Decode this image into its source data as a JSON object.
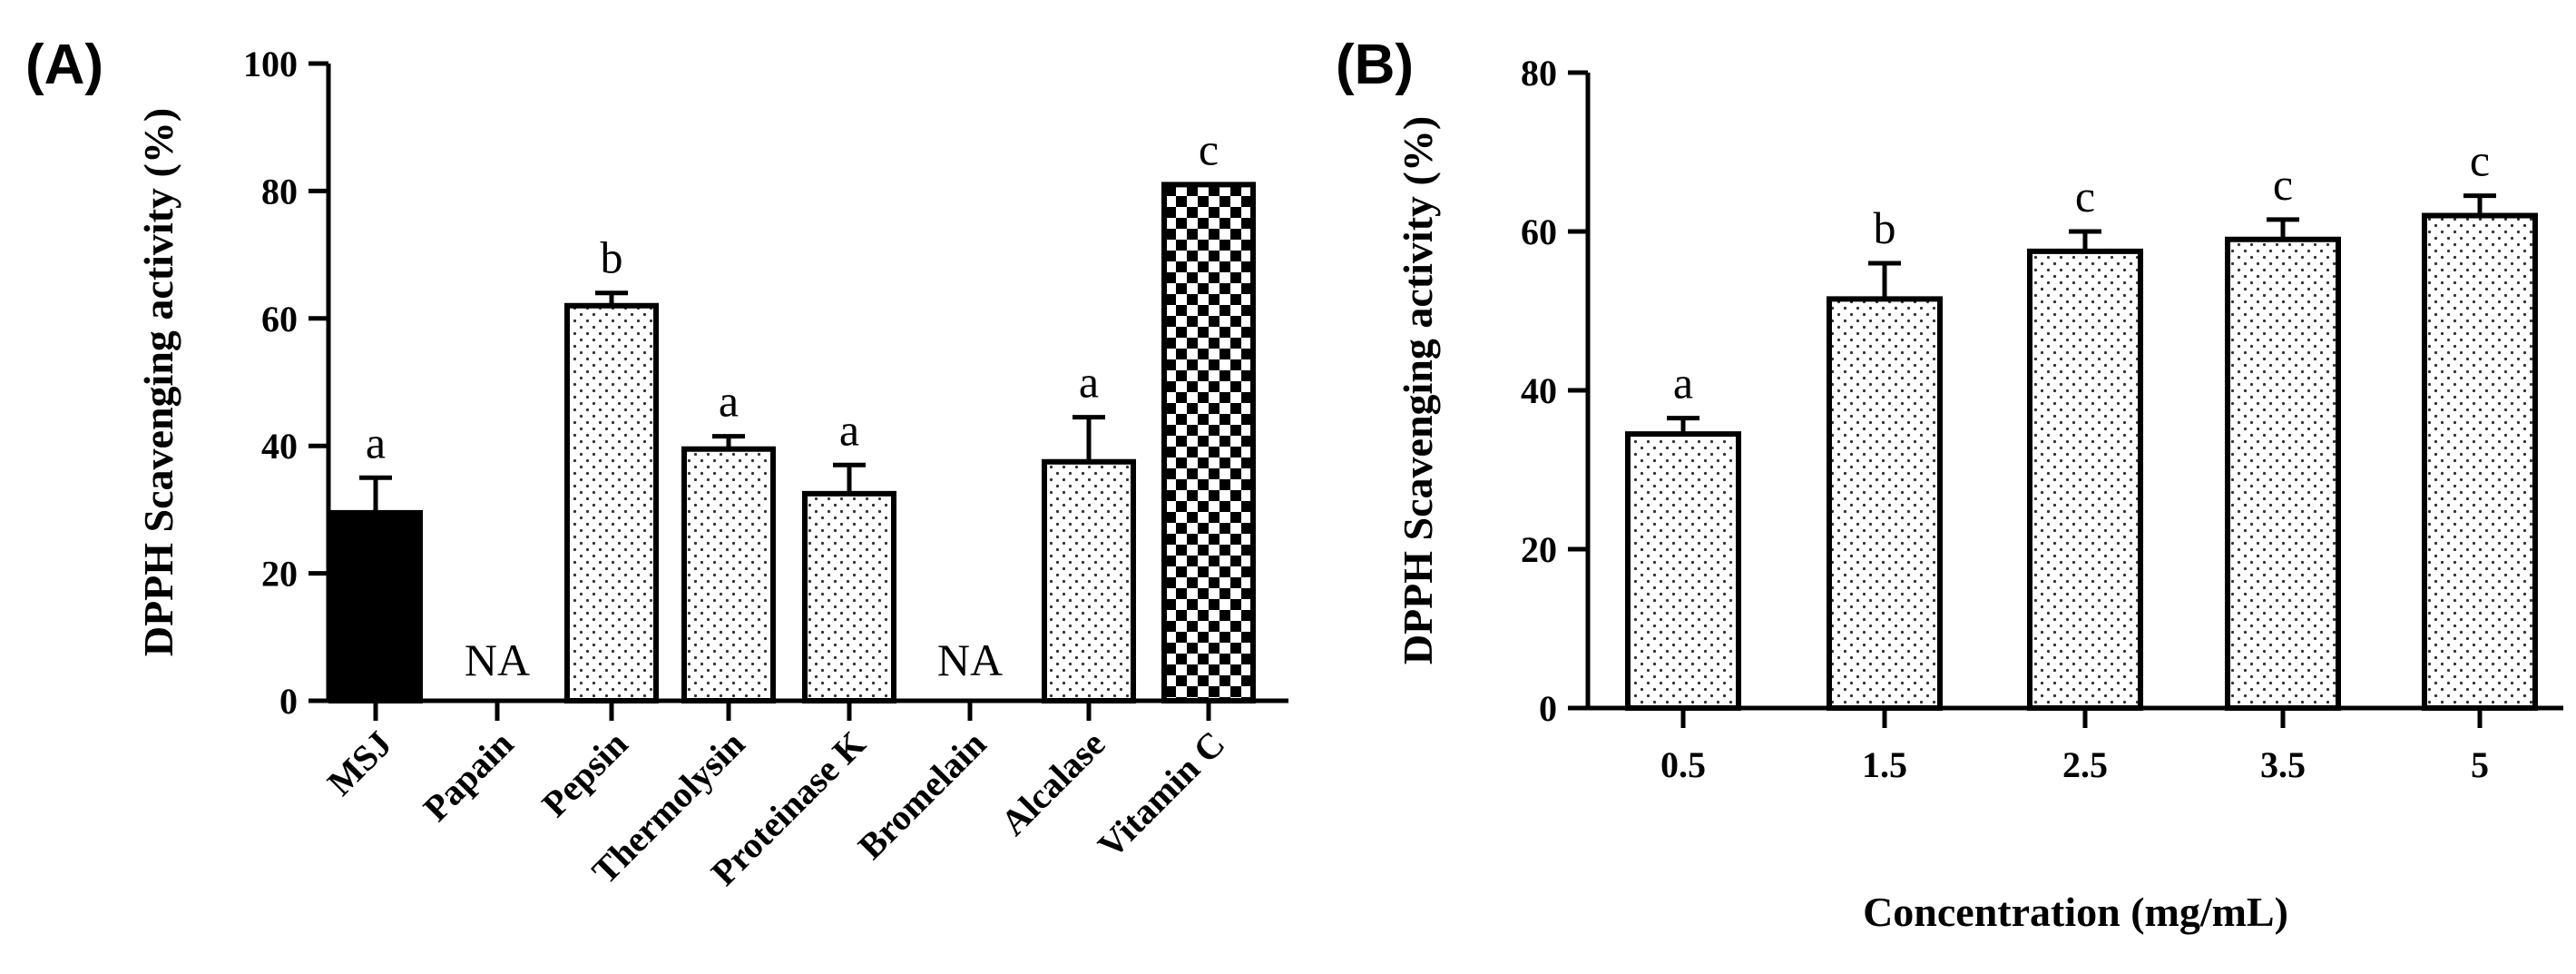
{
  "chart_data": [
    {
      "type": "bar",
      "panel_label": "(A)",
      "ylabel": "DPPH Scavenging activity (%)",
      "xlabel": "",
      "ylim": [
        0,
        100
      ],
      "yticks": [
        0,
        20,
        40,
        60,
        80,
        100
      ],
      "categories": [
        "MSJ",
        "Papain",
        "Pepsin",
        "Thermolysin",
        "Proteinase K",
        "Bromelain",
        "Alcalase",
        "Vitamin C"
      ],
      "values": [
        29.5,
        null,
        62,
        39.5,
        32.5,
        null,
        37.5,
        81
      ],
      "errors": [
        5.5,
        null,
        2,
        2,
        4.5,
        null,
        7,
        0
      ],
      "labels": [
        "a",
        "NA",
        "b",
        "a",
        "a",
        "NA",
        "a",
        "c"
      ],
      "patterns": [
        "solid",
        "none",
        "dots",
        "dots",
        "dots",
        "none",
        "dots",
        "checker"
      ],
      "colors": {
        "solid": "#000000",
        "stroke": "#000000",
        "fill": "#ffffff"
      }
    },
    {
      "type": "bar",
      "panel_label": "(B)",
      "ylabel": "DPPH Scavenging activity (%)",
      "xlabel": "Concentration (mg/mL)",
      "ylim": [
        0,
        80
      ],
      "yticks": [
        0,
        20,
        40,
        60,
        80
      ],
      "categories": [
        "0.5",
        "1.5",
        "2.5",
        "3.5",
        "5"
      ],
      "values": [
        34.5,
        51.5,
        57.5,
        59,
        62
      ],
      "errors": [
        2,
        4.5,
        2.5,
        2.5,
        2.5
      ],
      "labels": [
        "a",
        "b",
        "c",
        "c",
        "c"
      ],
      "patterns": [
        "dots",
        "dots",
        "dots",
        "dots",
        "dots"
      ],
      "colors": {
        "stroke": "#000000",
        "fill": "#ffffff"
      }
    }
  ]
}
